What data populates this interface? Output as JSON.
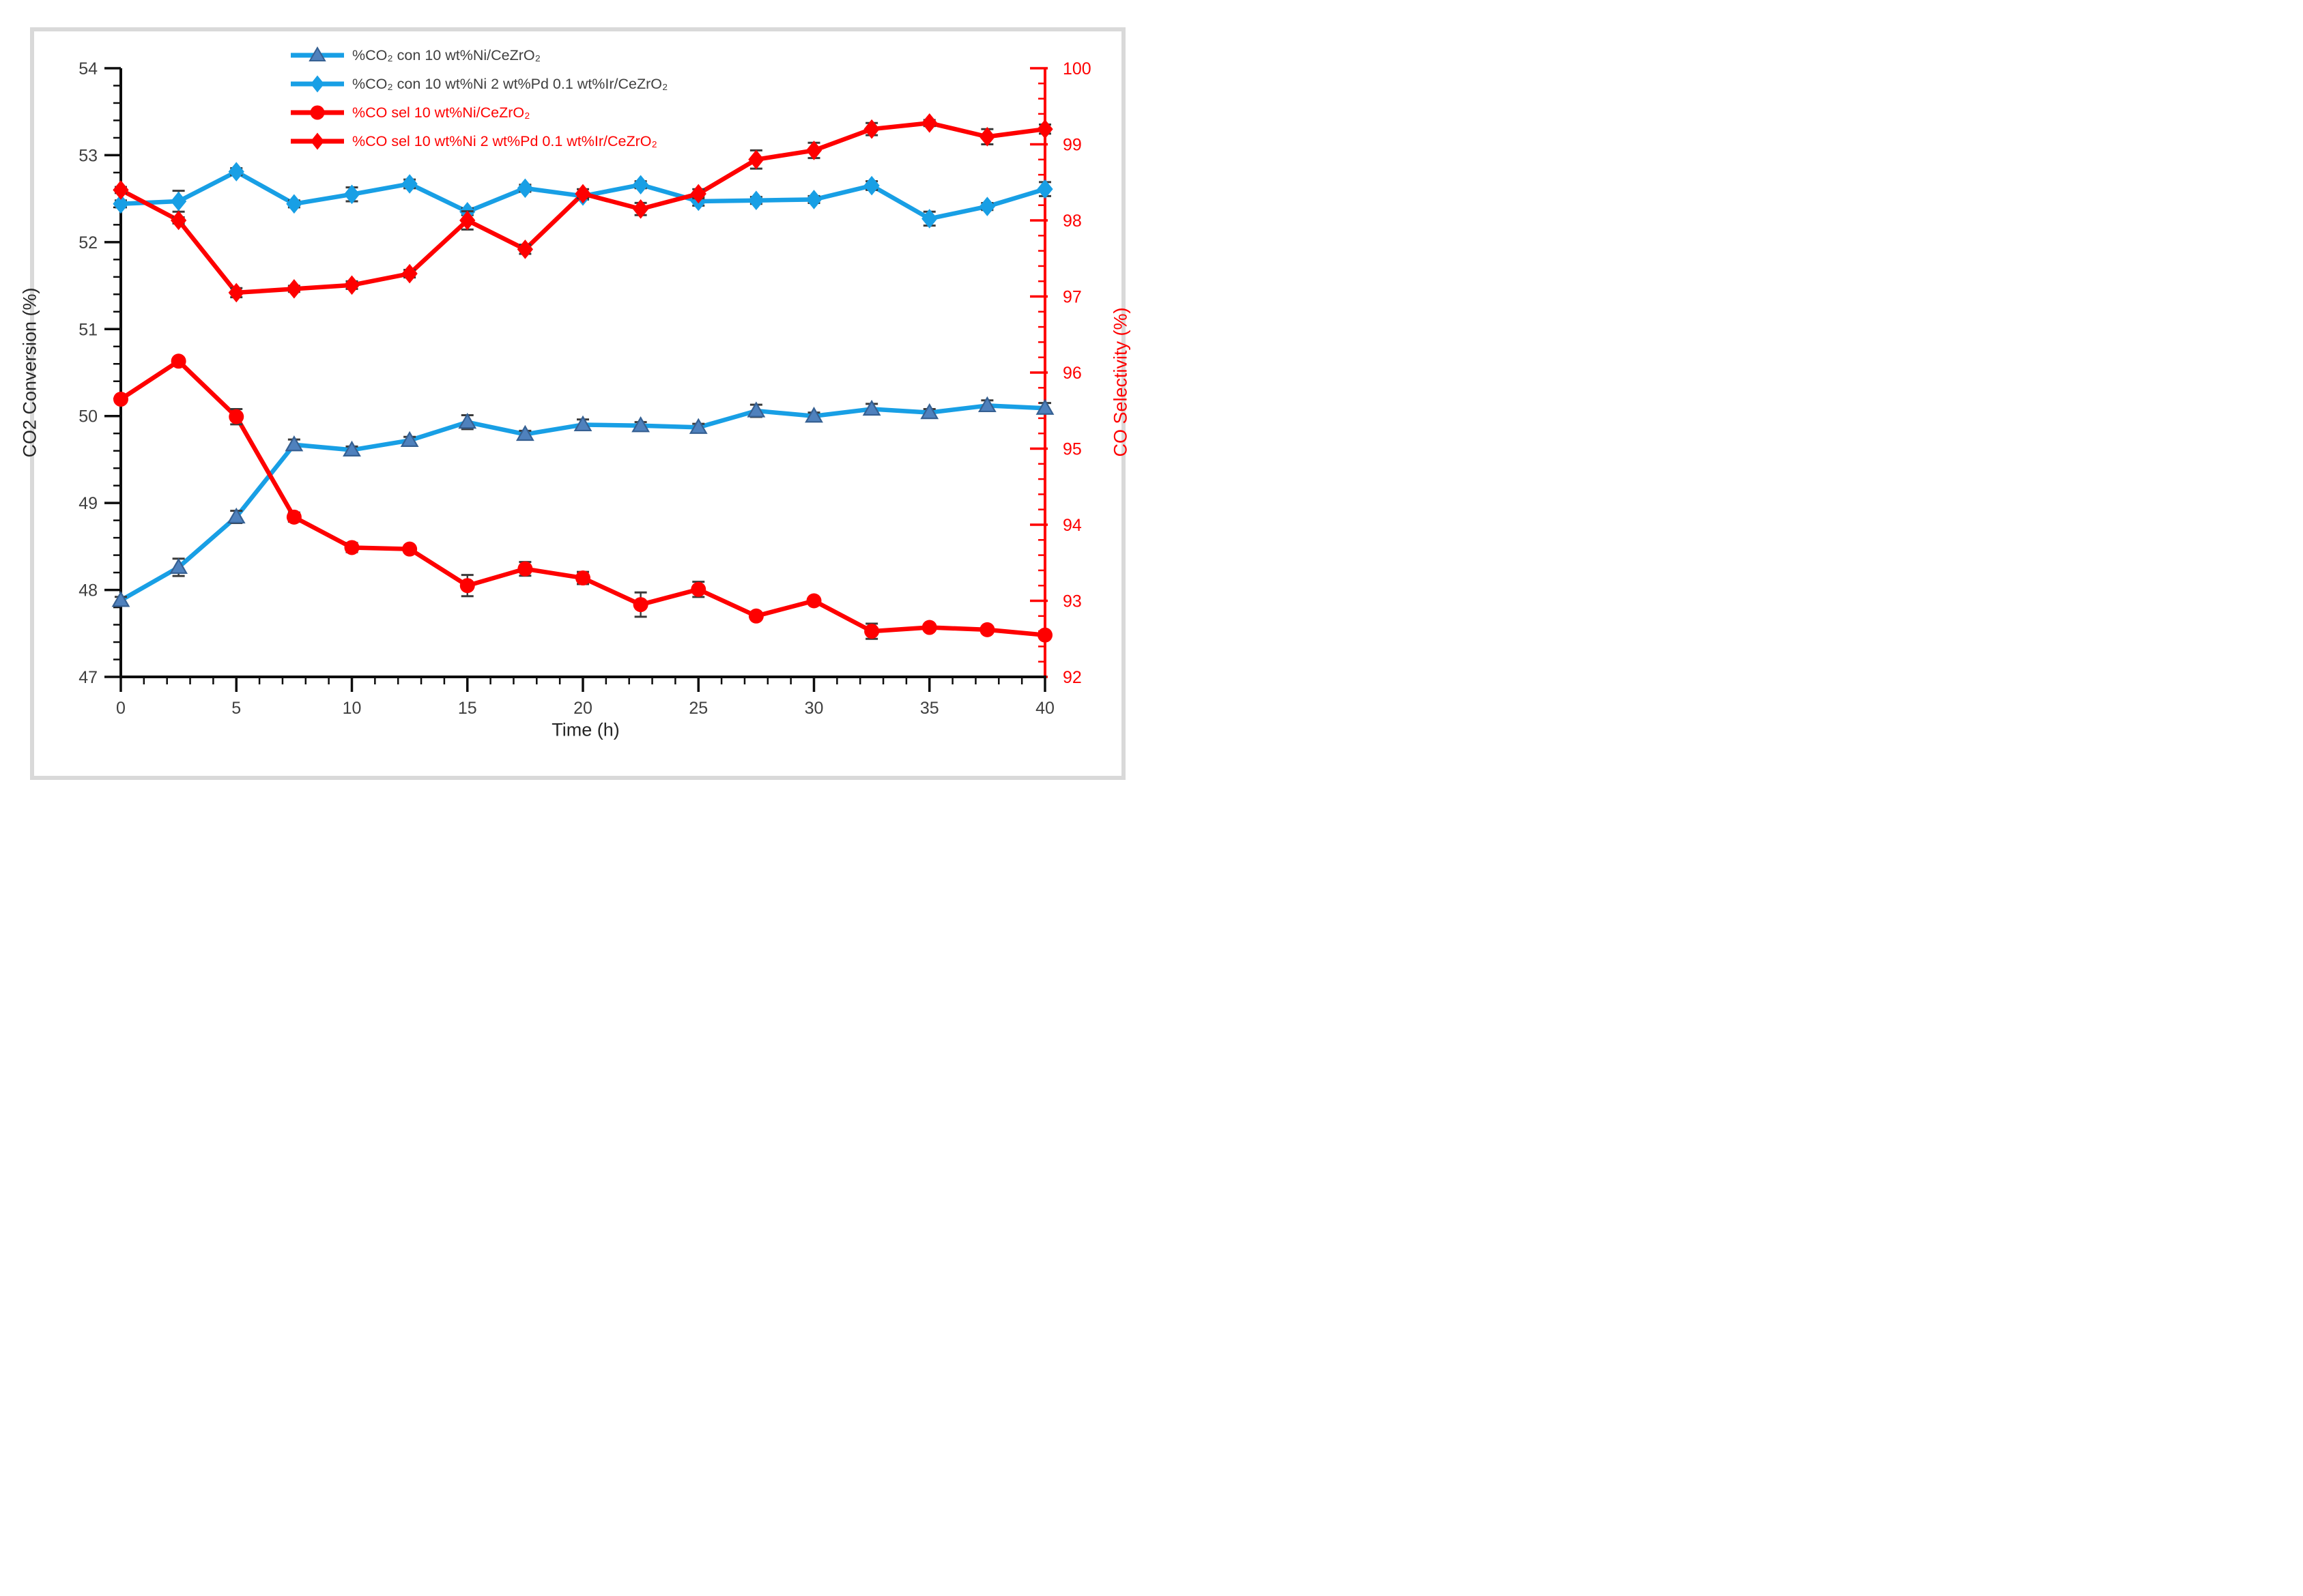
{
  "figure": {
    "background": "#ffffff",
    "border_color": "#d9d9d9",
    "axis_color_left": "#000000",
    "axis_color_right": "#fe0000",
    "tick_label_color": "#3f3f3f",
    "error_bar_color": "#3a3a3a"
  },
  "chart_data": {
    "type": "line",
    "title": "",
    "x_label": "Time (h)",
    "y_left_label": "CO2 Conversion (%)",
    "y_right_label": "CO Selectivity (%)",
    "x_range": [
      0,
      40
    ],
    "y_left_range": [
      47,
      54
    ],
    "y_right_range": [
      92,
      100
    ],
    "x_major_ticks": [
      0,
      5,
      10,
      15,
      20,
      25,
      30,
      35,
      40
    ],
    "x_minor_step": 1,
    "y_left_major_ticks": [
      47,
      48,
      49,
      50,
      51,
      52,
      53,
      54
    ],
    "y_right_major_ticks": [
      92,
      93,
      94,
      95,
      96,
      97,
      98,
      99,
      100
    ],
    "y_minor_step": 0.2,
    "grid": false,
    "legend_position": "top-center",
    "x": [
      0,
      2.5,
      5,
      7.5,
      10,
      12.5,
      15,
      17.5,
      20,
      22.5,
      25,
      27.5,
      30,
      32.5,
      35,
      37.5,
      40
    ],
    "series": [
      {
        "name": "%CO₂ con 10 wt%Ni/CeZrO₂",
        "axis": "left",
        "marker": "triangle",
        "line_color": "#189fe5",
        "marker_fill": "#4f81bd",
        "marker_edge": "#366092",
        "label_color": "#3f3f3f",
        "values": [
          47.88,
          48.26,
          48.84,
          49.67,
          49.61,
          49.72,
          49.93,
          49.79,
          49.9,
          49.89,
          49.87,
          50.06,
          50.0,
          50.08,
          50.04,
          50.12,
          50.09
        ],
        "err": [
          0.04,
          0.1,
          0.07,
          0.06,
          0.04,
          0.04,
          0.08,
          0.04,
          0.06,
          0.04,
          0.04,
          0.07,
          0.04,
          0.06,
          0.04,
          0.06,
          0.06
        ]
      },
      {
        "name": "%CO₂ con 10 wt%Ni 2 wt%Pd 0.1 wt%Ir/CeZrO₂",
        "axis": "left",
        "marker": "diamond",
        "line_color": "#189fe5",
        "marker_fill": "#189fe5",
        "marker_edge": "#189fe5",
        "label_color": "#3f3f3f",
        "values": [
          52.44,
          52.47,
          52.81,
          52.44,
          52.55,
          52.67,
          52.35,
          52.62,
          52.53,
          52.66,
          52.47,
          52.48,
          52.49,
          52.65,
          52.27,
          52.41,
          52.61
        ],
        "err": [
          0.04,
          0.12,
          0.04,
          0.04,
          0.08,
          0.05,
          0.04,
          0.04,
          0.04,
          0.04,
          0.05,
          0.04,
          0.04,
          0.05,
          0.08,
          0.04,
          0.08
        ]
      },
      {
        "name": "%CO sel 10 wt%Ni/CeZrO₂",
        "axis": "right",
        "marker": "circle",
        "line_color": "#fe0000",
        "marker_fill": "#fe0000",
        "marker_edge": "#fe0000",
        "label_color": "#fe0000",
        "values": [
          95.65,
          96.15,
          95.42,
          94.1,
          93.7,
          93.68,
          93.2,
          93.42,
          93.3,
          92.95,
          93.15,
          92.8,
          93.0,
          92.6,
          92.65,
          92.62,
          92.55
        ],
        "err": [
          0.04,
          0.04,
          0.1,
          0.06,
          0.06,
          0.04,
          0.14,
          0.09,
          0.08,
          0.16,
          0.1,
          0.04,
          0.04,
          0.1,
          0.04,
          0.04,
          0.04
        ]
      },
      {
        "name": "%CO sel 10 wt%Ni 2 wt%Pd 0.1 wt%Ir/CeZrO₂",
        "axis": "right",
        "marker": "diamond",
        "line_color": "#fe0000",
        "marker_fill": "#fe0000",
        "marker_edge": "#fe0000",
        "label_color": "#fe0000",
        "values": [
          98.4,
          98.0,
          97.05,
          97.1,
          97.15,
          97.3,
          98.0,
          97.62,
          98.35,
          98.15,
          98.35,
          98.8,
          98.92,
          99.2,
          99.28,
          99.1,
          99.2
        ],
        "err": [
          0.04,
          0.04,
          0.06,
          0.04,
          0.05,
          0.05,
          0.12,
          0.06,
          0.06,
          0.08,
          0.06,
          0.12,
          0.1,
          0.08,
          0.04,
          0.1,
          0.06
        ]
      }
    ]
  }
}
